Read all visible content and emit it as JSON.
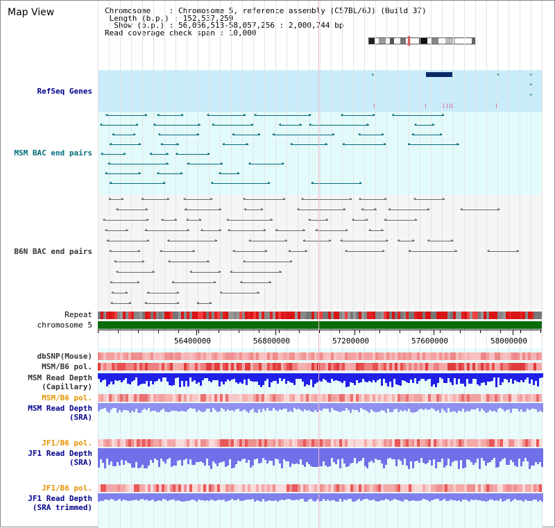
{
  "header": {
    "title": "Map View",
    "info_lines": [
      "Chromosome    : Chromosome 5, reference assembly (C57BL/6J) (Build 37)",
      " Length (b.p.) : 152,537,259",
      "  Show (b.p.) : 56,056,513-58,057,256 : 2,000,744 bp",
      "Read coverage check span : 10,000"
    ]
  },
  "tracks": {
    "refseq": "RefSeq Genes",
    "msm_bac": "MSM BAC end pairs",
    "b6n_bac": "B6N BAC end pairs",
    "repeat": "Repeat",
    "chromosome": "chromosome 5",
    "dbsnp": "dbSNP(Mouse)",
    "msm_b6_pol_1": "MSM/B6 pol.",
    "msm_depth_cap": "MSM Read Depth\n(Capillary)",
    "msm_b6_pol_2": "MSM/B6 pol.",
    "msm_depth_sra": "MSM Read Depth\n(SRA)",
    "jf1_b6_pol_1": "JF1/B6 pol.",
    "jf1_depth_sra": "JF1 Read Depth\n(SRA)",
    "jf1_b6_pol_2": "JF1/B6 pol.",
    "jf1_depth_trim": "JF1 Read Depth\n(SRA trimmed)"
  },
  "axis": {
    "ticks": [
      "56400000",
      "56800000",
      "57200000",
      "57600000",
      "58000000"
    ]
  },
  "colors": {
    "refseq_bg": "#c8ecfa",
    "msm_bg": "#e3fafb",
    "b6n_bg": "#f5f5f5",
    "lower_bg": "#e8fcfc",
    "teal": "#006b7a",
    "grey": "#666666",
    "navy": "#0a2a66",
    "chromosome": "#0a6b0a"
  }
}
